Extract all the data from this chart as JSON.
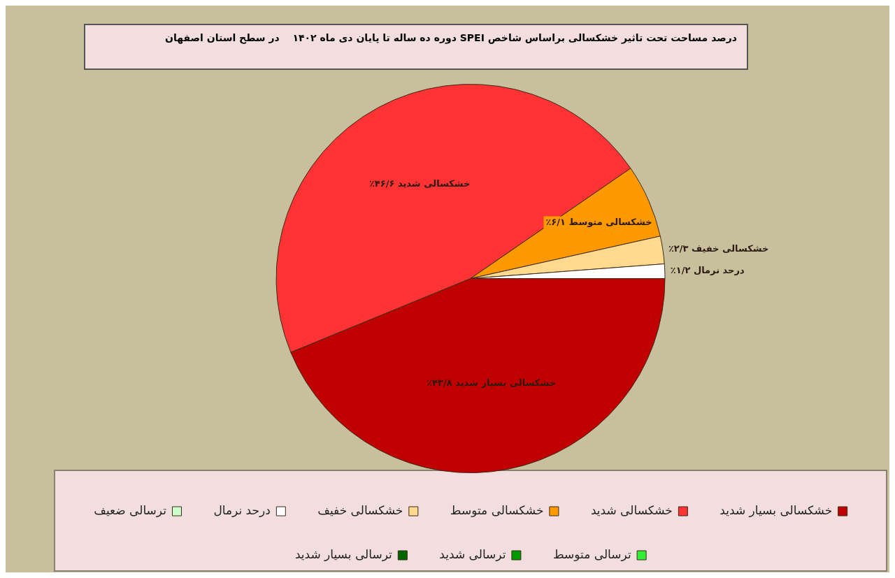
{
  "chart_data": {
    "type": "pie",
    "title": "درصد مساحت تحت تاثیر خشکسالی براساس شاخص SPEI دوره ده ساله تا پایان دی ماه ۱۴۰۲",
    "subtitle": "در سطح استان اصفهان",
    "categories": [
      "خشکسالی بسیار شدید",
      "خشکسالی شدید",
      "خشکسالی متوسط",
      "خشکسالی خفیف",
      "درحد نرمال",
      "ترسالی ضعیف",
      "ترسالی متوسط",
      "ترسالی شدید",
      "ترسالی بسیار شدید"
    ],
    "values": [
      43.8,
      46.6,
      6.1,
      2.3,
      1.2,
      0,
      0,
      0,
      0
    ],
    "colors": [
      "#c00000",
      "#ff3333",
      "#ff9900",
      "#ffd98e",
      "#ffffff",
      "#ccffcc",
      "#33ee33",
      "#009900",
      "#006600"
    ],
    "value_labels": [
      "۴۳/۸٪",
      "۴۶/۶٪",
      "۶/۱٪",
      "۲/۳٪",
      "۱/۲٪",
      null,
      null,
      null,
      null
    ],
    "legend": "bottom"
  }
}
